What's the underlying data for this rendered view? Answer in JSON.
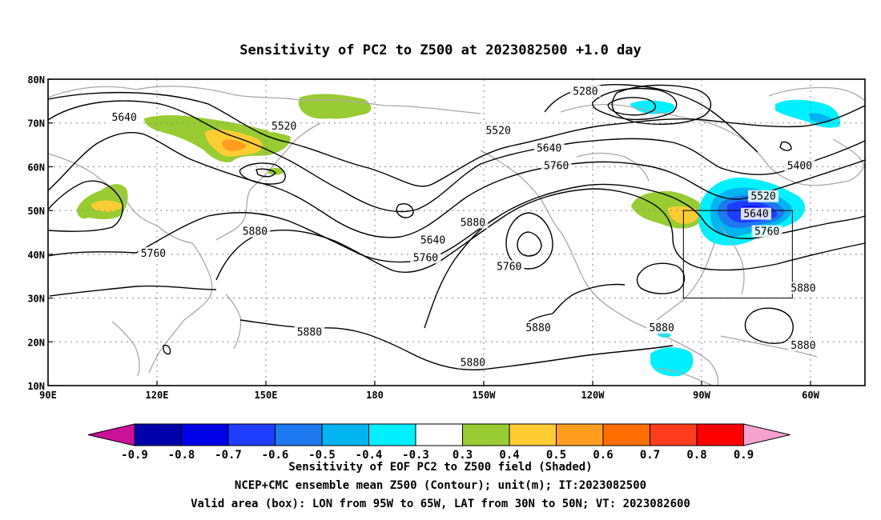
{
  "title": "Sensitivity of PC2 to Z500 at 2023082500 +1.0 day",
  "lat_labels": [
    "80N",
    "70N",
    "60N",
    "50N",
    "40N",
    "30N",
    "20N",
    "10N"
  ],
  "lat_values": [
    80,
    70,
    60,
    50,
    40,
    30,
    20,
    10
  ],
  "lon_labels": [
    "90E",
    "120E",
    "150E",
    "180",
    "150W",
    "120W",
    "90W",
    "60W"
  ],
  "lon_values": [
    90,
    120,
    150,
    180,
    210,
    240,
    270,
    300
  ],
  "map_extent": {
    "lon_min": 90,
    "lon_max": 315,
    "lat_min": 10,
    "lat_max": 80
  },
  "valid_box": {
    "lon_min": 265,
    "lon_max": 295,
    "lat_min": 30,
    "lat_max": 50
  },
  "contour_labels": [
    {
      "text": "5640",
      "lon": 111,
      "lat": 71
    },
    {
      "text": "5520",
      "lon": 155,
      "lat": 69
    },
    {
      "text": "5280",
      "lon": 238,
      "lat": 77
    },
    {
      "text": "5520",
      "lon": 214,
      "lat": 68
    },
    {
      "text": "5640",
      "lon": 228,
      "lat": 64
    },
    {
      "text": "5760",
      "lon": 230,
      "lat": 60
    },
    {
      "text": "5400",
      "lon": 297,
      "lat": 60
    },
    {
      "text": "5520",
      "lon": 287,
      "lat": 53
    },
    {
      "text": "5640",
      "lon": 285,
      "lat": 49
    },
    {
      "text": "5760",
      "lon": 288,
      "lat": 45
    },
    {
      "text": "5880",
      "lon": 147,
      "lat": 45
    },
    {
      "text": "5760",
      "lon": 119,
      "lat": 40
    },
    {
      "text": "5640",
      "lon": 196,
      "lat": 43
    },
    {
      "text": "5760",
      "lon": 194,
      "lat": 39
    },
    {
      "text": "5880",
      "lon": 207,
      "lat": 47
    },
    {
      "text": "5760",
      "lon": 217,
      "lat": 37
    },
    {
      "text": "5880",
      "lon": 225,
      "lat": 23
    },
    {
      "text": "5880",
      "lon": 162,
      "lat": 22
    },
    {
      "text": "5880",
      "lon": 207,
      "lat": 15
    },
    {
      "text": "5880",
      "lon": 259,
      "lat": 23
    },
    {
      "text": "5880",
      "lon": 298,
      "lat": 32
    },
    {
      "text": "5880",
      "lon": 298,
      "lat": 19
    }
  ],
  "colorbar": {
    "labels": [
      "-0.9",
      "-0.8",
      "-0.7",
      "-0.6",
      "-0.5",
      "-0.4",
      "-0.3",
      "0.3",
      "0.4",
      "0.5",
      "0.6",
      "0.7",
      "0.8",
      "0.9"
    ],
    "colors": [
      "#0000aa",
      "#0000e6",
      "#1e3cff",
      "#1e78f0",
      "#00b4f0",
      "#00f0ff",
      "#ffffff",
      "#99cc33",
      "#ffcc33",
      "#ff9e1e",
      "#ff6e00",
      "#ff3c1e",
      "#ff0000"
    ],
    "low_extend_color": "#cc1199",
    "high_extend_color": "#f7a1cf"
  },
  "footer": {
    "line1": "Sensitivity of EOF PC2 to Z500 field (Shaded)",
    "line2": "NCEP+CMC ensemble mean Z500 (Contour); unit(m); IT:2023082500",
    "line3": "Valid area (box): LON from 95W to 65W, LAT from 30N to 50N; VT: 2023082600"
  }
}
